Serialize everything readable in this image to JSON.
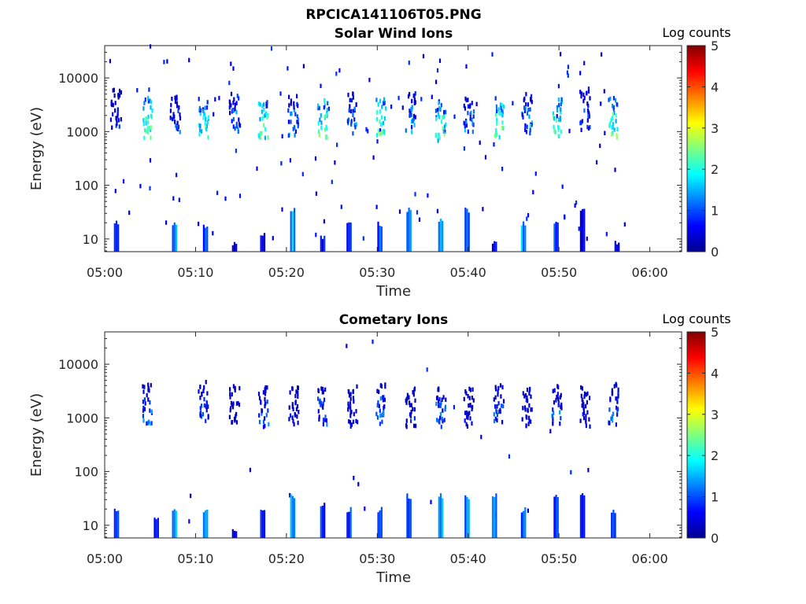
{
  "figure": {
    "title": "RPCICA141106T05.PNG"
  },
  "chart_data": [
    {
      "type": "heatmap",
      "title": "Solar Wind Ions",
      "xlabel": "Time",
      "ylabel": "Energy (eV)",
      "x_ticks": [
        "05:00",
        "05:10",
        "05:20",
        "05:30",
        "05:40",
        "05:50",
        "06:00"
      ],
      "x_tick_minutes": [
        0,
        10,
        20,
        30,
        40,
        50,
        60
      ],
      "xlim_minutes": [
        0,
        63.5
      ],
      "y_scale": "log",
      "y_ticks": [
        "10",
        "100",
        "1000",
        "10000"
      ],
      "y_tick_values": [
        10,
        100,
        1000,
        10000
      ],
      "ylim": [
        5.8,
        40000
      ],
      "colorbar": {
        "label": "Log counts",
        "ticks": [
          "0",
          "1",
          "2",
          "3",
          "4",
          "5"
        ],
        "range": [
          0,
          5
        ],
        "colormap": "jet"
      },
      "grid": false,
      "clusters": [
        {
          "t": 1.2,
          "e": 1500,
          "v": 1.0
        },
        {
          "t": 4.6,
          "e": 1000,
          "v": 2.7
        },
        {
          "t": 7.7,
          "e": 1100,
          "v": 1.4
        },
        {
          "t": 10.8,
          "e": 1000,
          "v": 2.4
        },
        {
          "t": 14.2,
          "e": 1200,
          "v": 1.8
        },
        {
          "t": 17.4,
          "e": 1000,
          "v": 2.6
        },
        {
          "t": 20.7,
          "e": 1100,
          "v": 1.7
        },
        {
          "t": 23.9,
          "e": 1000,
          "v": 2.7
        },
        {
          "t": 27.2,
          "e": 1200,
          "v": 1.6
        },
        {
          "t": 30.3,
          "e": 1000,
          "v": 2.8
        },
        {
          "t": 33.6,
          "e": 1300,
          "v": 1.8
        },
        {
          "t": 36.9,
          "e": 900,
          "v": 2.6
        },
        {
          "t": 40.0,
          "e": 1100,
          "v": 1.7
        },
        {
          "t": 43.3,
          "e": 1000,
          "v": 2.7
        },
        {
          "t": 46.4,
          "e": 1200,
          "v": 1.8
        },
        {
          "t": 49.7,
          "e": 1000,
          "v": 2.8
        },
        {
          "t": 52.8,
          "e": 1400,
          "v": 1.5
        },
        {
          "t": 55.9,
          "e": 1000,
          "v": 2.7
        }
      ],
      "low_bursts": [
        {
          "t": 1.2,
          "top": 22,
          "v": 1.3
        },
        {
          "t": 7.6,
          "top": 22,
          "v": 1.6
        },
        {
          "t": 11.0,
          "top": 20,
          "v": 1.2
        },
        {
          "t": 14.2,
          "top": 10,
          "v": 0.7
        },
        {
          "t": 17.3,
          "top": 14,
          "v": 1.0
        },
        {
          "t": 20.6,
          "top": 40,
          "v": 1.8
        },
        {
          "t": 23.9,
          "top": 12,
          "v": 0.9
        },
        {
          "t": 26.8,
          "top": 22,
          "v": 1.4
        },
        {
          "t": 30.2,
          "top": 22,
          "v": 1.2
        },
        {
          "t": 33.4,
          "top": 40,
          "v": 1.5
        },
        {
          "t": 36.9,
          "top": 24,
          "v": 1.7
        },
        {
          "t": 39.8,
          "top": 40,
          "v": 1.6
        },
        {
          "t": 42.8,
          "top": 10,
          "v": 0.9
        },
        {
          "t": 46.0,
          "top": 22,
          "v": 1.8
        },
        {
          "t": 49.6,
          "top": 22,
          "v": 1.2
        },
        {
          "t": 52.5,
          "top": 40,
          "v": 0.9
        },
        {
          "t": 56.3,
          "top": 10,
          "v": 0.8
        }
      ],
      "noise_count": 130
    },
    {
      "type": "heatmap",
      "title": "Cometary Ions",
      "xlabel": "Time",
      "ylabel": "Energy (eV)",
      "x_ticks": [
        "05:00",
        "05:10",
        "05:20",
        "05:30",
        "05:40",
        "05:50",
        "06:00"
      ],
      "x_tick_minutes": [
        0,
        10,
        20,
        30,
        40,
        50,
        60
      ],
      "xlim_minutes": [
        0,
        63.5
      ],
      "y_scale": "log",
      "y_ticks": [
        "10",
        "100",
        "1000",
        "10000"
      ],
      "y_tick_values": [
        10,
        100,
        1000,
        10000
      ],
      "ylim": [
        5.8,
        40000
      ],
      "colorbar": {
        "label": "Log counts",
        "ticks": [
          "0",
          "1",
          "2",
          "3",
          "4",
          "5"
        ],
        "range": [
          0,
          5
        ],
        "colormap": "jet"
      },
      "grid": false,
      "clusters": [
        {
          "t": 4.6,
          "e": 1000,
          "v": 1.5
        },
        {
          "t": 10.8,
          "e": 1100,
          "v": 1.3
        },
        {
          "t": 14.2,
          "e": 1000,
          "v": 0.8
        },
        {
          "t": 17.4,
          "e": 900,
          "v": 1.5
        },
        {
          "t": 20.7,
          "e": 900,
          "v": 0.8
        },
        {
          "t": 23.9,
          "e": 1000,
          "v": 1.4
        },
        {
          "t": 27.2,
          "e": 900,
          "v": 0.8
        },
        {
          "t": 30.3,
          "e": 1000,
          "v": 1.6
        },
        {
          "t": 33.6,
          "e": 900,
          "v": 0.9
        },
        {
          "t": 36.9,
          "e": 900,
          "v": 1.6
        },
        {
          "t": 40.0,
          "e": 900,
          "v": 0.8
        },
        {
          "t": 43.3,
          "e": 1000,
          "v": 1.5
        },
        {
          "t": 46.4,
          "e": 900,
          "v": 0.8
        },
        {
          "t": 49.7,
          "e": 1000,
          "v": 1.5
        },
        {
          "t": 52.8,
          "e": 900,
          "v": 0.8
        },
        {
          "t": 55.9,
          "e": 1000,
          "v": 1.5
        }
      ],
      "low_bursts": [
        {
          "t": 1.2,
          "top": 22,
          "v": 1.3
        },
        {
          "t": 5.6,
          "top": 14,
          "v": 0.9
        },
        {
          "t": 7.6,
          "top": 22,
          "v": 1.7
        },
        {
          "t": 11.0,
          "top": 22,
          "v": 1.6
        },
        {
          "t": 14.2,
          "top": 10,
          "v": 0.7
        },
        {
          "t": 17.3,
          "top": 22,
          "v": 1.3
        },
        {
          "t": 20.6,
          "top": 40,
          "v": 1.6
        },
        {
          "t": 23.9,
          "top": 28,
          "v": 1.3
        },
        {
          "t": 26.8,
          "top": 22,
          "v": 1.2
        },
        {
          "t": 30.2,
          "top": 22,
          "v": 1.3
        },
        {
          "t": 33.4,
          "top": 40,
          "v": 1.4
        },
        {
          "t": 36.9,
          "top": 40,
          "v": 1.9
        },
        {
          "t": 39.8,
          "top": 40,
          "v": 1.6
        },
        {
          "t": 42.8,
          "top": 40,
          "v": 1.7
        },
        {
          "t": 46.0,
          "top": 22,
          "v": 1.4
        },
        {
          "t": 49.6,
          "top": 40,
          "v": 1.3
        },
        {
          "t": 52.5,
          "top": 40,
          "v": 0.9
        },
        {
          "t": 55.9,
          "top": 22,
          "v": 1.6
        }
      ],
      "noise_count": 20
    }
  ]
}
